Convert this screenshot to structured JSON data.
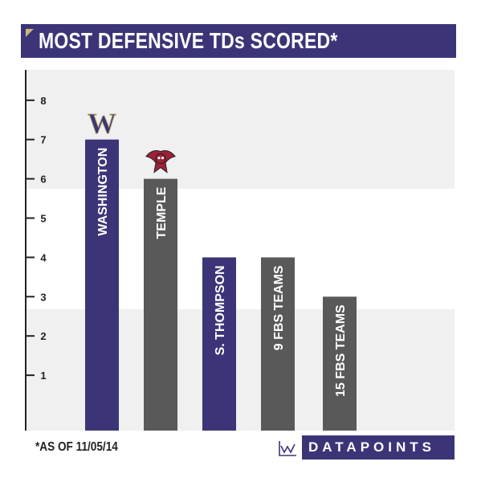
{
  "chart_data": {
    "type": "bar",
    "title": "MOST DEFENSIVE TDs SCORED*",
    "categories": [
      "WASHINGTON",
      "TEMPLE",
      "S. THOMPSON",
      "9 FBS TEAMS",
      "15 FBS TEAMS"
    ],
    "values": [
      7,
      6,
      4,
      4,
      3
    ],
    "bar_colors": [
      "#3b3578",
      "#595959",
      "#3b3578",
      "#595959",
      "#595959"
    ],
    "ylim": [
      0,
      8
    ],
    "yticks": [
      "1",
      "2",
      "3",
      "4",
      "5",
      "6",
      "7",
      "8"
    ],
    "xlabel": "",
    "ylabel": "",
    "logos": [
      {
        "category": "WASHINGTON",
        "icon": "washington-w-logo-icon",
        "text": "W"
      },
      {
        "category": "TEMPLE",
        "icon": "temple-owl-logo-icon"
      }
    ]
  },
  "footnote": "*AS OF 11/05/14",
  "brand": {
    "name": "DATAPOINTS",
    "logo_icon": "datapoints-logo-icon"
  },
  "colors": {
    "primary": "#3b3578",
    "secondary": "#595959",
    "background_band": "#f0f0f0",
    "accent": "#c9b77e"
  }
}
